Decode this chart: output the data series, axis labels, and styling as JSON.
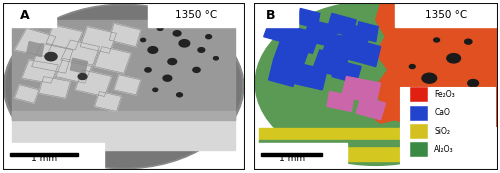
{
  "fig_width": 5.0,
  "fig_height": 1.73,
  "dpi": 100,
  "left_label": "A",
  "right_label": "B",
  "left_temp": "1350 °C",
  "right_temp": "1350 °C",
  "scale_bar_text": "1 mm",
  "legend_items": [
    {
      "label": "Fe₂O₃",
      "color": "#e02010"
    },
    {
      "label": "CaO",
      "color": "#2244cc"
    },
    {
      "label": "SiO₂",
      "color": "#d4c020"
    },
    {
      "label": "Al₂O₃",
      "color": "#3a8a45"
    }
  ],
  "sem_circle_color": "#888888",
  "sem_bg_color": "#555555",
  "sem_crystal_bright": "#d8d8d8",
  "sem_crystal_mid": "#bbbbbb",
  "sem_band_color": "#e8e8e8",
  "sem_dark_spot": "#222222",
  "eds_green": "#5a9a55",
  "eds_yellow": "#d4c820",
  "eds_orange": "#e05020",
  "eds_blue": "#2244cc",
  "eds_pink": "#cc66aa",
  "bg_color": "#ffffff"
}
